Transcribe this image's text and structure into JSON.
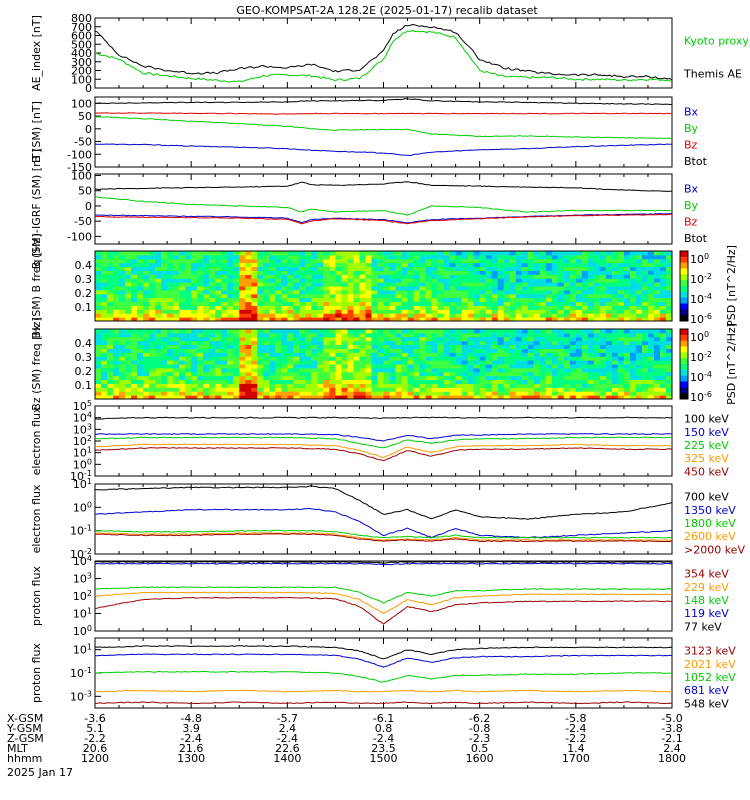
{
  "title": "GEO-KOMPSAT-2A 128.2E (2025-01-17) recalib dataset",
  "x_ticks": [
    "1200",
    "1300",
    "1400",
    "1500",
    "1600",
    "1700",
    "1800"
  ],
  "x_minor_per_major": 4,
  "ephemeris": {
    "rows": [
      {
        "label": "X-GSM",
        "values": [
          "-3.6",
          "-4.8",
          "-5.7",
          "-6.1",
          "-6.2",
          "-5.8",
          "-5.0"
        ]
      },
      {
        "label": "Y-GSM",
        "values": [
          "5.1",
          "3.9",
          "2.4",
          "0.8",
          "-0.8",
          "-2.4",
          "-3.8"
        ]
      },
      {
        "label": "Z-GSM",
        "values": [
          "-2.2",
          "-2.4",
          "-2.4",
          "-2.4",
          "-2.3",
          "-2.2",
          "-2.1"
        ]
      },
      {
        "label": "MLT",
        "values": [
          "20.6",
          "21.6",
          "22.6",
          "23.5",
          "0.5",
          "1.4",
          "2.4"
        ]
      },
      {
        "label": "hhmm",
        "values": [
          "1200",
          "1300",
          "1400",
          "1500",
          "1600",
          "1700",
          "1800"
        ]
      }
    ],
    "date": "2025 Jan 17"
  },
  "colors": {
    "black": "#000000",
    "green": "#00cc00",
    "red": "#dd0000",
    "blue": "#0000cc",
    "orange": "#ff9900",
    "darkred": "#990000",
    "lightgreen": "#00dd66"
  },
  "chart_data": [
    {
      "type": "line",
      "id": "ae",
      "ylabel": "AE_index [nT]",
      "ylim": [
        0,
        800
      ],
      "yticks": [
        "0",
        "100",
        "200",
        "300",
        "400",
        "500",
        "600",
        "700",
        "800"
      ],
      "x": [
        12.0,
        12.25,
        12.5,
        12.75,
        13.0,
        13.25,
        13.5,
        13.75,
        14.0,
        14.25,
        14.5,
        14.75,
        15.0,
        15.1,
        15.25,
        15.5,
        15.75,
        16.0,
        16.25,
        16.5,
        16.75,
        17.0,
        17.25,
        17.5,
        17.75,
        18.0
      ],
      "series": [
        {
          "name": "Kyoto proxy AE",
          "color": "#00cc00",
          "values": [
            400,
            330,
            170,
            140,
            110,
            90,
            70,
            140,
            150,
            140,
            90,
            110,
            330,
            540,
            660,
            640,
            580,
            200,
            130,
            120,
            120,
            100,
            100,
            90,
            100,
            90
          ]
        },
        {
          "name": "Themis AE",
          "color": "#000000",
          "values": [
            660,
            380,
            250,
            200,
            170,
            170,
            220,
            250,
            230,
            270,
            190,
            210,
            420,
            620,
            720,
            700,
            640,
            330,
            230,
            190,
            160,
            150,
            150,
            130,
            130,
            100
          ]
        }
      ]
    },
    {
      "type": "line",
      "id": "bsm",
      "ylabel": "B (SM) [nT]",
      "ylim": [
        -150,
        125
      ],
      "yticks": [
        "-150",
        "-100",
        "-50",
        "0",
        "50",
        "100"
      ],
      "x": [
        12.0,
        12.5,
        13.0,
        13.5,
        14.0,
        14.25,
        14.5,
        15.0,
        15.25,
        15.5,
        16.0,
        16.5,
        17.0,
        17.5,
        18.0
      ],
      "series": [
        {
          "name": "Bx",
          "color": "#0000cc",
          "values": [
            -60,
            -62,
            -68,
            -72,
            -78,
            -84,
            -88,
            -95,
            -105,
            -92,
            -82,
            -78,
            -70,
            -65,
            -60
          ]
        },
        {
          "name": "By",
          "color": "#00cc00",
          "values": [
            48,
            40,
            30,
            20,
            10,
            0,
            -5,
            -3,
            -2,
            -20,
            -30,
            -28,
            -32,
            -35,
            -38
          ]
        },
        {
          "name": "Bz",
          "color": "#dd0000",
          "values": [
            62,
            62,
            61,
            60,
            58,
            60,
            60,
            60,
            60,
            60,
            60,
            60,
            60,
            60,
            60
          ]
        },
        {
          "name": "Btot",
          "color": "#000000",
          "values": [
            100,
            102,
            104,
            104,
            106,
            110,
            110,
            112,
            118,
            110,
            106,
            104,
            100,
            98,
            96
          ]
        }
      ]
    },
    {
      "type": "line",
      "id": "bsmigrf",
      "ylabel": "B (SM)-IGRF (SM) [nT]",
      "ylim": [
        -125,
        105
      ],
      "yticks": [
        "-100",
        "-50",
        "0",
        "50",
        "100"
      ],
      "x": [
        12.0,
        12.5,
        13.0,
        13.5,
        14.0,
        14.15,
        14.25,
        14.5,
        15.0,
        15.25,
        15.5,
        16.0,
        16.5,
        17.0,
        17.5,
        18.0
      ],
      "series": [
        {
          "name": "Bx",
          "color": "#0000cc",
          "values": [
            -30,
            -32,
            -34,
            -36,
            -40,
            -55,
            -45,
            -40,
            -45,
            -55,
            -45,
            -40,
            -35,
            -30,
            -28,
            -25
          ]
        },
        {
          "name": "By",
          "color": "#00cc00",
          "values": [
            30,
            15,
            5,
            0,
            -5,
            -20,
            -10,
            -20,
            -15,
            -30,
            0,
            -5,
            -20,
            -15,
            -15,
            -15
          ]
        },
        {
          "name": "Bz",
          "color": "#dd0000",
          "values": [
            -35,
            -37,
            -38,
            -40,
            -44,
            -58,
            -50,
            -42,
            -48,
            -58,
            -48,
            -42,
            -36,
            -32,
            -30,
            -28
          ]
        },
        {
          "name": "Btot",
          "color": "#000000",
          "values": [
            55,
            58,
            60,
            62,
            65,
            78,
            70,
            68,
            72,
            80,
            68,
            65,
            62,
            60,
            52,
            48
          ]
        }
      ]
    },
    {
      "type": "heatmap",
      "id": "bx-spec",
      "ylabel": "Bx (SM) B freq [Hz]",
      "ylim": [
        0,
        0.5
      ],
      "yticks": [
        "0.1",
        "0.2",
        "0.3",
        "0.4"
      ],
      "colorbar_label": "PSD [nT^2/Hz]",
      "colorbar_ticks": [
        "10^0",
        "10^-2",
        "10^-4",
        "10^-6"
      ]
    },
    {
      "type": "heatmap",
      "id": "bz-spec",
      "ylabel": "Bz (SM) freq [Hz]",
      "ylim": [
        0,
        0.5
      ],
      "yticks": [
        "0.1",
        "0.2",
        "0.3",
        "0.4"
      ],
      "colorbar_label": "PSD [nT^2/Hz]",
      "colorbar_ticks": [
        "10^0",
        "10^-2",
        "10^-4",
        "10^-6"
      ]
    },
    {
      "type": "line",
      "id": "eflux1",
      "log": true,
      "ylabel": "electron flux",
      "ylim": [
        -1,
        5
      ],
      "yticks": [
        "10^-1",
        "10^0",
        "10^1",
        "10^2",
        "10^3",
        "10^4",
        "10^5"
      ],
      "x": [
        12.0,
        12.5,
        13.0,
        13.5,
        14.0,
        14.5,
        14.75,
        15.0,
        15.25,
        15.5,
        15.75,
        16.0,
        16.5,
        17.0,
        17.5,
        18.0
      ],
      "series": [
        {
          "name": "100 keV",
          "color": "#000000",
          "values": [
            3.9,
            4.0,
            4.0,
            4.0,
            4.0,
            4.0,
            4.0,
            3.95,
            4.0,
            4.0,
            4.0,
            4.0,
            4.0,
            4.0,
            4.0,
            4.0
          ]
        },
        {
          "name": "150 keV",
          "color": "#0000cc",
          "values": [
            2.6,
            2.6,
            2.6,
            2.6,
            2.6,
            2.55,
            2.3,
            2.0,
            2.5,
            2.2,
            2.5,
            2.5,
            2.6,
            2.6,
            2.6,
            2.6
          ]
        },
        {
          "name": "225 keV",
          "color": "#00cc00",
          "values": [
            2.2,
            2.3,
            2.3,
            2.3,
            2.3,
            2.2,
            1.8,
            1.4,
            2.1,
            1.8,
            2.1,
            2.2,
            2.2,
            2.3,
            2.3,
            2.3
          ]
        },
        {
          "name": "325 keV",
          "color": "#ff9900",
          "values": [
            1.5,
            1.7,
            1.7,
            1.7,
            1.7,
            1.6,
            1.2,
            0.6,
            1.5,
            1.0,
            1.5,
            1.6,
            1.6,
            1.7,
            1.6,
            1.6
          ]
        },
        {
          "name": "450 keV",
          "color": "#990000",
          "values": [
            1.2,
            1.4,
            1.4,
            1.4,
            1.4,
            1.3,
            0.9,
            0.3,
            1.2,
            0.7,
            1.2,
            1.3,
            1.3,
            1.4,
            1.3,
            1.3
          ]
        }
      ]
    },
    {
      "type": "line",
      "id": "eflux2",
      "log": true,
      "ylabel": "electron flux",
      "ylim": [
        -2,
        1
      ],
      "yticks": [
        "10^-2",
        "10^-1",
        "10^0",
        "10^1"
      ],
      "x": [
        12.0,
        12.5,
        13.0,
        13.5,
        14.0,
        14.25,
        14.5,
        14.75,
        15.0,
        15.25,
        15.5,
        15.75,
        16.0,
        16.5,
        17.0,
        17.5,
        18.0
      ],
      "series": [
        {
          "name": "700 keV",
          "color": "#000000",
          "values": [
            0.75,
            0.8,
            0.85,
            0.85,
            0.85,
            0.9,
            0.8,
            0.3,
            -0.3,
            -0.1,
            -0.5,
            -0.1,
            -0.4,
            -0.5,
            -0.3,
            -0.2,
            0.2
          ]
        },
        {
          "name": "1350 keV",
          "color": "#0000cc",
          "values": [
            -0.3,
            -0.2,
            -0.1,
            -0.1,
            -0.1,
            -0.05,
            -0.2,
            -0.6,
            -1.2,
            -0.9,
            -1.3,
            -0.9,
            -1.2,
            -1.3,
            -1.2,
            -1.1,
            -1.0
          ]
        },
        {
          "name": "1800 keV",
          "color": "#00cc00",
          "values": [
            -1.0,
            -1.05,
            -1.05,
            -1.0,
            -1.0,
            -1.0,
            -1.05,
            -1.2,
            -1.3,
            -1.25,
            -1.3,
            -1.2,
            -1.3,
            -1.3,
            -1.3,
            -1.3,
            -1.3
          ]
        },
        {
          "name": "2600 keV",
          "color": "#ff9900",
          "values": [
            -1.1,
            -1.15,
            -1.15,
            -1.1,
            -1.1,
            -1.1,
            -1.15,
            -1.3,
            -1.4,
            -1.35,
            -1.4,
            -1.3,
            -1.4,
            -1.4,
            -1.4,
            -1.4,
            -1.4
          ]
        },
        {
          "name": ">2000 keV",
          "color": "#990000",
          "values": [
            -1.15,
            -1.2,
            -1.2,
            -1.15,
            -1.15,
            -1.15,
            -1.2,
            -1.35,
            -1.45,
            -1.4,
            -1.45,
            -1.35,
            -1.45,
            -1.45,
            -1.45,
            -1.45,
            -1.45
          ]
        }
      ]
    },
    {
      "type": "line",
      "id": "pflux1",
      "log": true,
      "ylabel": "proton flux",
      "ylim": [
        0,
        4
      ],
      "yticks": [
        "10^0",
        "10^1",
        "10^2",
        "10^3",
        "10^4"
      ],
      "x": [
        12.0,
        12.5,
        13.0,
        13.5,
        14.0,
        14.5,
        14.75,
        15.0,
        15.25,
        15.5,
        15.75,
        16.0,
        16.5,
        17.0,
        17.5,
        18.0
      ],
      "series": [
        {
          "name": "354 keV",
          "color": "#990000",
          "values": [
            1.3,
            1.8,
            1.9,
            1.9,
            1.9,
            1.85,
            1.4,
            0.4,
            1.4,
            1.1,
            1.5,
            1.6,
            1.7,
            1.7,
            1.7,
            1.7
          ]
        },
        {
          "name": "229 keV",
          "color": "#ff9900",
          "values": [
            2.0,
            2.2,
            2.2,
            2.2,
            2.2,
            2.15,
            1.8,
            1.0,
            1.8,
            1.5,
            1.9,
            2.0,
            2.1,
            2.1,
            2.1,
            2.1
          ]
        },
        {
          "name": "148 keV",
          "color": "#00cc00",
          "values": [
            2.4,
            2.5,
            2.5,
            2.5,
            2.5,
            2.5,
            2.2,
            1.6,
            2.2,
            2.0,
            2.3,
            2.3,
            2.4,
            2.4,
            2.4,
            2.4
          ]
        },
        {
          "name": "119 keV",
          "color": "#0000cc",
          "values": [
            3.85,
            3.85,
            3.85,
            3.85,
            3.85,
            3.85,
            3.85,
            3.8,
            3.85,
            3.85,
            3.85,
            3.85,
            3.85,
            3.85,
            3.85,
            3.85
          ]
        },
        {
          "name": "77 keV",
          "color": "#000000",
          "values": [
            3.95,
            3.95,
            3.95,
            3.95,
            3.95,
            3.95,
            3.95,
            3.9,
            3.95,
            3.95,
            3.95,
            3.95,
            3.95,
            3.95,
            3.95,
            3.95
          ]
        }
      ]
    },
    {
      "type": "line",
      "id": "pflux2",
      "log": true,
      "ylabel": "proton flux",
      "ylim": [
        -4,
        2
      ],
      "yticks": [
        "10^-3",
        "10^-1",
        "10^1"
      ],
      "x": [
        12.0,
        12.5,
        13.0,
        13.5,
        14.0,
        14.5,
        14.75,
        15.0,
        15.25,
        15.5,
        15.75,
        16.0,
        16.5,
        17.0,
        17.5,
        18.0
      ],
      "series": [
        {
          "name": "3123 keV",
          "color": "#990000",
          "values": [
            -3.6,
            -3.5,
            -3.6,
            -3.5,
            -3.6,
            -3.5,
            -3.6,
            -3.6,
            -3.5,
            -3.6,
            -3.5,
            -3.6,
            -3.5,
            -3.6,
            -3.5,
            -3.6
          ]
        },
        {
          "name": "2021 keV",
          "color": "#ff9900",
          "values": [
            -2.6,
            -2.5,
            -2.6,
            -2.5,
            -2.6,
            -2.5,
            -2.6,
            -2.6,
            -2.5,
            -2.6,
            -2.5,
            -2.6,
            -2.5,
            -2.6,
            -2.5,
            -2.6
          ]
        },
        {
          "name": "1052 keV",
          "color": "#00cc00",
          "values": [
            -1.0,
            -0.9,
            -0.9,
            -0.9,
            -0.9,
            -1.0,
            -1.3,
            -1.8,
            -1.2,
            -1.5,
            -1.2,
            -1.2,
            -1.1,
            -1.1,
            -1.0,
            -1.0
          ]
        },
        {
          "name": "681 keV",
          "color": "#0000cc",
          "values": [
            0.5,
            0.6,
            0.6,
            0.6,
            0.6,
            0.5,
            0.2,
            -0.5,
            0.3,
            -0.1,
            0.3,
            0.4,
            0.4,
            0.5,
            0.5,
            0.5
          ]
        },
        {
          "name": "548 keV",
          "color": "#000000",
          "values": [
            1.2,
            1.3,
            1.3,
            1.3,
            1.3,
            1.2,
            0.9,
            0.2,
            1.0,
            0.6,
            1.0,
            1.1,
            1.2,
            1.2,
            1.2,
            1.2
          ]
        }
      ]
    }
  ]
}
